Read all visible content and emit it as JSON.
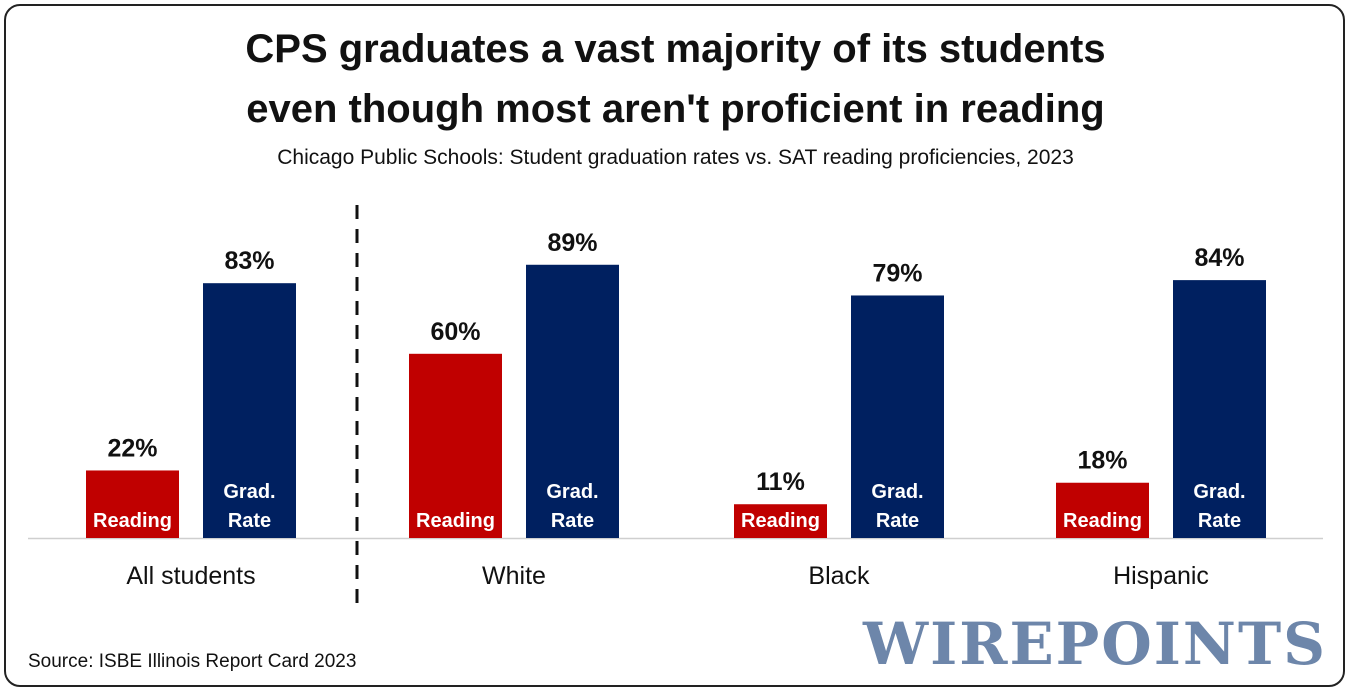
{
  "title_line1": "CPS graduates a vast majority of its students",
  "title_line2": "even though most aren't proficient in reading",
  "subtitle": "Chicago Public Schools: Student graduation rates vs. SAT reading proficiencies, 2023",
  "source": "Source: ISBE Illinois Report Card 2023",
  "logo": "WIREPOINTS",
  "colors": {
    "reading": "#c00000",
    "grad": "#002060",
    "logo": "#6d86aa"
  },
  "chart_data": {
    "type": "bar",
    "categories": [
      "All students",
      "White",
      "Black",
      "Hispanic"
    ],
    "ylim": [
      0,
      100
    ],
    "series": [
      {
        "name": "Reading",
        "label_lines": [
          "Reading"
        ],
        "values": [
          22,
          60,
          11,
          18
        ],
        "color": "#c00000"
      },
      {
        "name": "Grad. Rate",
        "label_lines": [
          "Grad.",
          "Rate"
        ],
        "values": [
          83,
          89,
          79,
          84
        ],
        "color": "#002060"
      }
    ],
    "value_suffix": "%",
    "divider_after_category": "All students",
    "grid": false
  }
}
